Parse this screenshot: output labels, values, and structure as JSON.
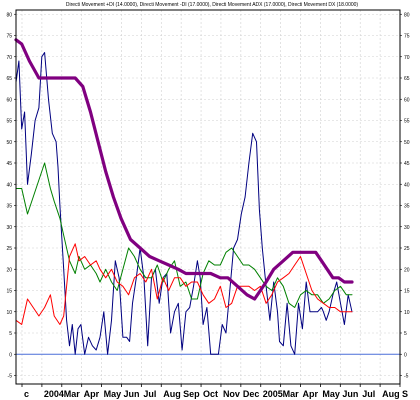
{
  "chart_data": {
    "type": "line",
    "title": "Directi Movement +DI (14.0000), Directi Movement -DI (17.0000), Directi Movement ADX (17.0000), Directi Movement DX (18.0000)",
    "xlabel": "",
    "ylabel": "",
    "ylim": [
      -7,
      81
    ],
    "grid": true,
    "legend": "none",
    "x_ticks": [
      "c",
      "2004",
      "Mar",
      "Apr",
      "May",
      "Jun",
      "Jul",
      "Aug",
      "Sep",
      "Oct",
      "Nov",
      "Dec",
      "2005",
      "Mar",
      "Apr",
      "May",
      "Jun",
      "Jul",
      "Aug",
      "S"
    ],
    "y_ticks": [
      -5,
      0,
      5,
      10,
      15,
      20,
      25,
      30,
      35,
      40,
      45,
      50,
      55,
      60,
      65,
      70,
      75,
      80
    ],
    "reference_line": 0,
    "series": [
      {
        "color": "#000080",
        "x": [
          0,
          3,
          6,
          9,
          12,
          16,
          20,
          24,
          27,
          30,
          34,
          38,
          42,
          44,
          46,
          50,
          53,
          56,
          59,
          62,
          65,
          68,
          72,
          76,
          80,
          84,
          88,
          92,
          96,
          100,
          104,
          108,
          112,
          116,
          119,
          122,
          126,
          130,
          134,
          138,
          142,
          146,
          150,
          154,
          158,
          162,
          166,
          170,
          174,
          178,
          182,
          186,
          190,
          193,
          196,
          200,
          204,
          208,
          212,
          216,
          220,
          224,
          228,
          232,
          236,
          240,
          244,
          248,
          252,
          255,
          258,
          262,
          266,
          270,
          274,
          276,
          280,
          284,
          288,
          292,
          296,
          300,
          304,
          308,
          312,
          316,
          320,
          322,
          325,
          328,
          332,
          336,
          340,
          344,
          348,
          352
        ],
        "values": [
          64,
          69,
          53,
          57,
          40,
          47,
          55,
          58,
          70,
          71,
          60,
          52,
          50,
          44,
          35,
          20,
          8,
          2,
          7,
          0,
          6,
          7,
          0,
          4,
          2,
          1,
          4,
          10,
          0,
          8,
          22,
          18,
          4,
          4,
          3,
          12,
          18,
          25,
          18,
          2,
          18,
          20,
          12,
          18,
          19,
          5,
          10,
          12,
          1,
          10,
          11,
          16,
          22,
          18,
          7,
          11,
          0,
          0,
          0,
          7,
          5,
          15,
          25,
          27,
          33,
          37,
          45,
          52,
          50,
          34,
          25,
          16,
          8,
          17,
          10,
          3,
          2,
          12,
          2,
          0,
          12,
          6,
          17,
          10,
          10,
          10,
          11,
          10,
          8,
          10,
          14,
          17,
          12,
          7,
          14,
          10
        ],
        "stroke_width": 1.0
      },
      {
        "color": "#008000",
        "x": [
          0,
          6,
          12,
          18,
          24,
          30,
          36,
          40,
          46,
          50,
          56,
          62,
          66,
          72,
          78,
          84,
          88,
          94,
          100,
          106,
          112,
          118,
          124,
          130,
          136,
          142,
          148,
          154,
          160,
          166,
          172,
          178,
          184,
          190,
          196,
          202,
          208,
          214,
          220,
          226,
          232,
          238,
          244,
          250,
          256,
          262,
          268,
          274,
          280,
          286,
          292,
          298,
          304,
          310,
          316,
          322,
          328,
          334,
          340,
          346,
          352
        ],
        "values": [
          39,
          39,
          33,
          37,
          41,
          45,
          39,
          36,
          32,
          28,
          22,
          19,
          23,
          20,
          21,
          19,
          17,
          20,
          17,
          15,
          20,
          25,
          23,
          20,
          18,
          18,
          21,
          17,
          20,
          22,
          16,
          17,
          13,
          13,
          19,
          22,
          21,
          21,
          24,
          25,
          23,
          21,
          21,
          20,
          18,
          16,
          15,
          18,
          16,
          12,
          11,
          14,
          15,
          14,
          14,
          12,
          13,
          15,
          16,
          14,
          14
        ],
        "stroke_width": 1.0
      },
      {
        "color": "#ff0000",
        "x": [
          0,
          6,
          12,
          18,
          24,
          30,
          36,
          40,
          46,
          50,
          56,
          62,
          66,
          72,
          78,
          84,
          88,
          94,
          100,
          106,
          112,
          118,
          124,
          130,
          136,
          142,
          148,
          154,
          160,
          166,
          172,
          178,
          184,
          190,
          196,
          202,
          208,
          214,
          220,
          226,
          232,
          238,
          244,
          250,
          256,
          262,
          268,
          274,
          280,
          286,
          292,
          298,
          304,
          310,
          316,
          322,
          328,
          334,
          340,
          346,
          352
        ],
        "values": [
          8,
          7,
          13,
          11,
          9,
          11,
          14,
          9,
          7,
          9,
          23,
          26,
          22,
          23,
          21,
          22,
          20,
          18,
          20,
          17,
          16,
          14,
          18,
          19,
          17,
          20,
          13,
          18,
          15,
          18,
          18,
          16,
          17,
          17,
          14,
          12,
          13,
          16,
          11,
          12,
          16,
          16,
          16,
          15,
          16,
          12,
          14,
          17,
          18,
          19,
          21,
          23,
          19,
          15,
          13,
          12,
          11,
          11,
          10,
          10,
          10
        ],
        "stroke_width": 1.0
      },
      {
        "color": "#800080",
        "x": [
          0,
          6,
          14,
          24,
          34,
          44,
          56,
          62,
          70,
          78,
          86,
          94,
          102,
          110,
          120,
          130,
          140,
          150,
          160,
          170,
          178,
          186,
          190,
          196,
          204,
          214,
          222,
          232,
          242,
          250,
          256,
          262,
          270,
          280,
          290,
          298,
          306,
          314,
          320,
          326,
          332,
          338,
          344,
          352
        ],
        "values": [
          74,
          73,
          69,
          65,
          65,
          65,
          65,
          65,
          63,
          57,
          50,
          43,
          37,
          32,
          27,
          25,
          23,
          22,
          21,
          20,
          19,
          19,
          19,
          19,
          19,
          18,
          18,
          16,
          14,
          13,
          15,
          17,
          20,
          22,
          24,
          24,
          24,
          24,
          22,
          20,
          18,
          18,
          17,
          17
        ],
        "stroke_width": 3.2
      }
    ]
  }
}
